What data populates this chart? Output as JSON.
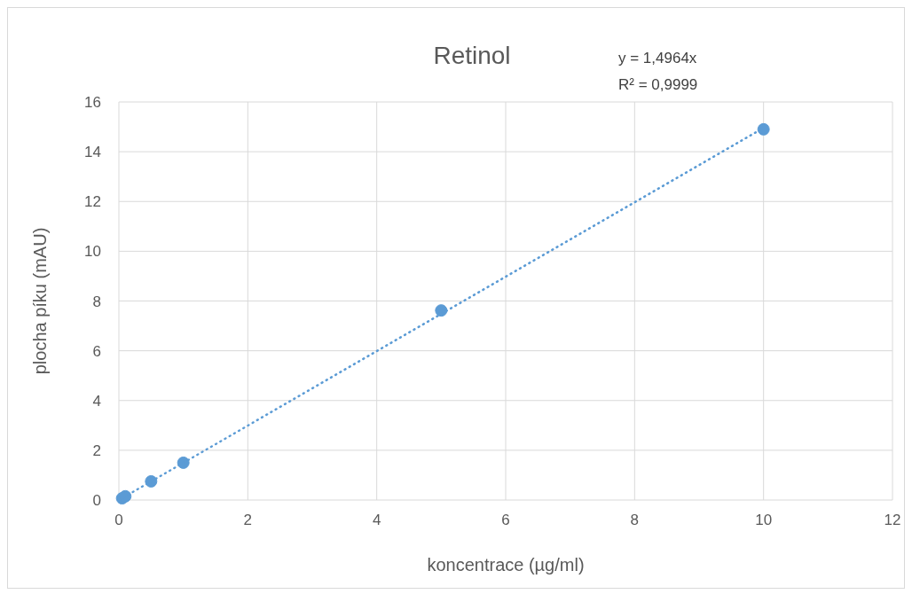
{
  "chart_data": {
    "type": "scatter",
    "title": "Retinol",
    "xlabel": "koncentrace (µg/ml)",
    "ylabel": "plocha píku (mAU)",
    "annotations": [
      "y = 1,4964x",
      "R² = 0,9999"
    ],
    "xlim": [
      0,
      12
    ],
    "xticks": [
      0,
      2,
      4,
      6,
      8,
      10,
      12
    ],
    "ylim": [
      0,
      16
    ],
    "yticks": [
      0,
      2,
      4,
      6,
      8,
      10,
      12,
      14,
      16
    ],
    "grid": true,
    "series": [
      {
        "marker": "circle",
        "color": "#5b9bd5",
        "x": [
          0.05,
          0.1,
          0.5,
          1,
          5,
          10
        ],
        "values": [
          0.07,
          0.15,
          0.75,
          1.5,
          7.62,
          14.9
        ]
      },
      {
        "type": "line",
        "color": "#5b9bd5",
        "line_style": "dotted",
        "x": [
          0,
          10
        ],
        "values": [
          0,
          14.96
        ]
      }
    ]
  }
}
